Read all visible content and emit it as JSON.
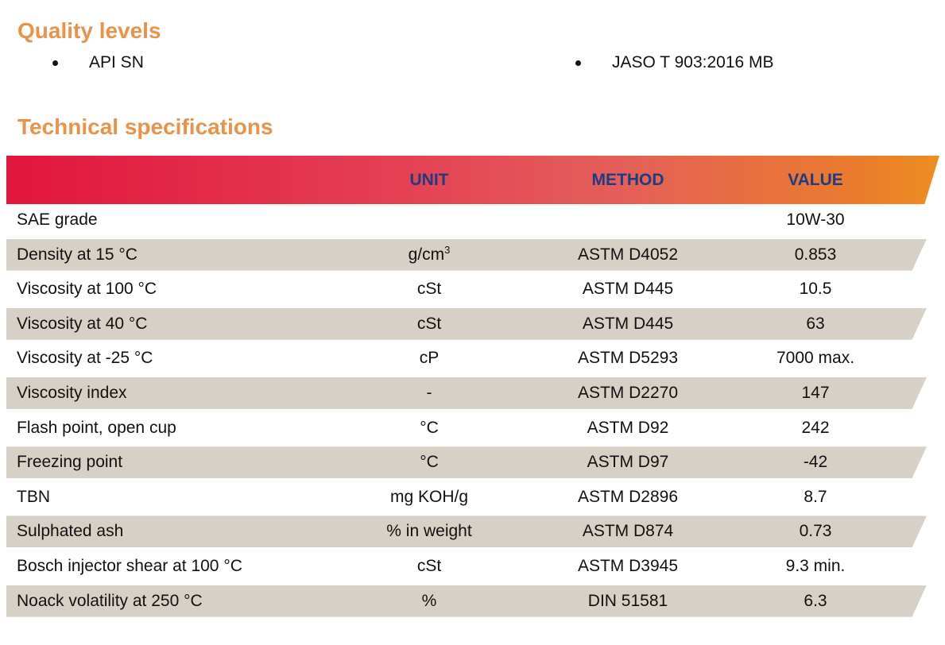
{
  "quality": {
    "title": "Quality levels",
    "items": [
      "API SN",
      "JASO T 903:2016 MB"
    ]
  },
  "tech": {
    "title": "Technical specifications",
    "headers": {
      "property": "",
      "unit": "UNIT",
      "method": "METHOD",
      "value": "VALUE"
    },
    "rows": [
      {
        "property": "SAE grade",
        "unit": "",
        "method": "",
        "value": "10W-30"
      },
      {
        "property": "Density at 15 °C",
        "unit": "g/cm",
        "unit_sup": "3",
        "method": "ASTM D4052",
        "value": "0.853"
      },
      {
        "property": "Viscosity at 100 °C",
        "unit": "cSt",
        "method": "ASTM D445",
        "value": "10.5"
      },
      {
        "property": "Viscosity at 40 °C",
        "unit": "cSt",
        "method": "ASTM D445",
        "value": "63"
      },
      {
        "property": "Viscosity at -25 °C",
        "unit": "cP",
        "method": "ASTM D5293",
        "value": "7000 max."
      },
      {
        "property": "Viscosity index",
        "unit": "-",
        "method": "ASTM D2270",
        "value": "147"
      },
      {
        "property": "Flash point, open cup",
        "unit": "°C",
        "method": "ASTM D92",
        "value": "242"
      },
      {
        "property": "Freezing point",
        "unit": "°C",
        "method": "ASTM D97",
        "value": "-42"
      },
      {
        "property": "TBN",
        "unit": "mg KOH/g",
        "method": "ASTM D2896",
        "value": "8.7"
      },
      {
        "property": "Sulphated ash",
        "unit": "% in weight",
        "method": "ASTM D874",
        "value": "0.73"
      },
      {
        "property": "Bosch injector shear at 100 °C",
        "unit": "cSt",
        "method": "ASTM D3945",
        "value": "9.3 min."
      },
      {
        "property": "Noack volatility at 250 °C",
        "unit": "%",
        "method": "DIN 51581",
        "value": "6.3"
      }
    ]
  },
  "colors": {
    "heading": "#e8924a",
    "header_text": "#1f3c82",
    "row_shade": "#d7d0c6",
    "gradient_start": "#e1163c",
    "gradient_end": "#ee8e20"
  }
}
